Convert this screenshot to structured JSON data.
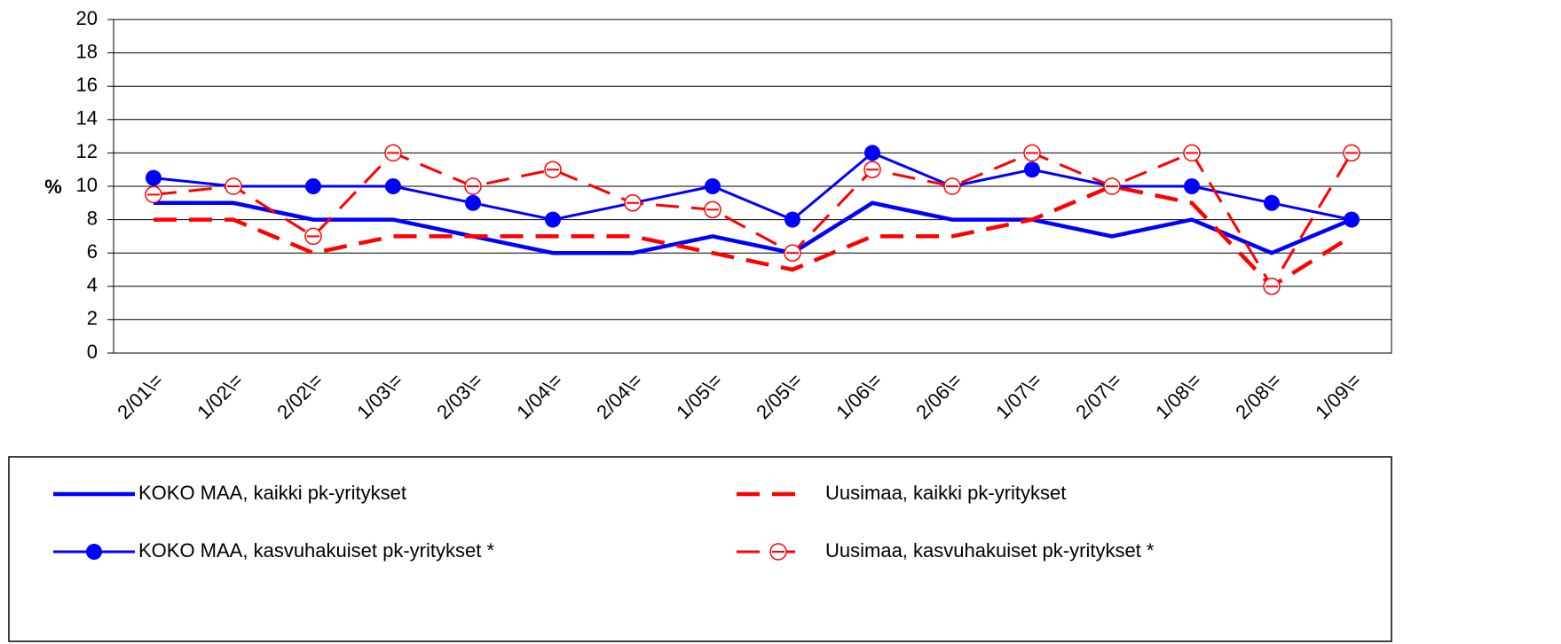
{
  "chart_data": {
    "type": "line",
    "y_label": "%",
    "categories": [
      "2/01\\=",
      "1/02\\=",
      "2/02\\=",
      "1/03\\=",
      "2/03\\=",
      "1/04\\=",
      "2/04\\=",
      "1/05\\=",
      "2/05\\=",
      "1/06\\=",
      "2/06\\=",
      "1/07\\=",
      "2/07\\=",
      "1/08\\=",
      "2/08\\=",
      "1/09\\="
    ],
    "series": [
      {
        "name": "KOKO MAA, kaikki pk-yritykset",
        "color": "#0000ff",
        "style": "solid",
        "marker": "none",
        "values": [
          9,
          9,
          8,
          8,
          7,
          6,
          6,
          7,
          6,
          9,
          8,
          8,
          7,
          8,
          6,
          8
        ]
      },
      {
        "name": "Uusimaa, kaikki pk-yritykset",
        "color": "#ff0000",
        "style": "dashed",
        "marker": "none",
        "values": [
          8,
          8,
          6,
          7,
          7,
          7,
          7,
          6,
          5,
          7,
          7,
          8,
          10,
          9,
          4,
          7
        ]
      },
      {
        "name": "KOKO MAA, kasvuhakuiset pk-yritykset *",
        "color": "#0000ff",
        "style": "solid",
        "marker": "filled",
        "values": [
          10.5,
          10,
          10,
          10,
          9,
          8,
          9,
          10,
          8,
          12,
          10,
          11,
          10,
          10,
          9,
          8
        ]
      },
      {
        "name": "Uusimaa, kasvuhakuiset pk-yritykset *",
        "color": "#ff0000",
        "style": "dashed",
        "marker": "open",
        "values": [
          9.5,
          10,
          7,
          12,
          10,
          11,
          9,
          8.6,
          6,
          11,
          10,
          12,
          10,
          12,
          4,
          12
        ]
      }
    ],
    "ylim": [
      0,
      20
    ],
    "yticks": [
      0,
      2,
      4,
      6,
      8,
      10,
      12,
      14,
      16,
      18,
      20
    ],
    "grid": true
  }
}
